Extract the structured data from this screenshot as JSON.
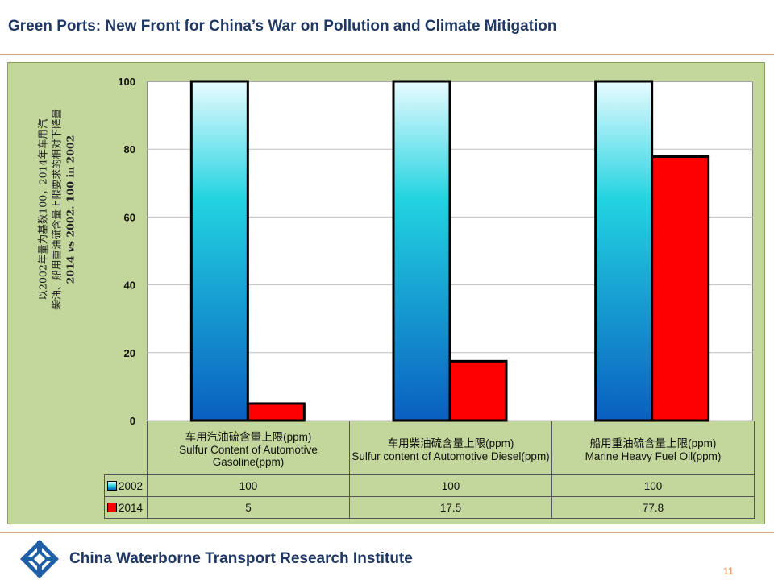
{
  "slide": {
    "title": "Green Ports: New Front for China’s War on Pollution and Climate Mitigation",
    "footer": "China Waterborne Transport Research Institute",
    "page_number": "11"
  },
  "colors": {
    "series_2002_top": "#e8fbff",
    "series_2002_mid": "#22d3e0",
    "series_2002_bottom": "#0a5fc0",
    "series_2014": "#ff0000",
    "panel": "#c3d69b",
    "title": "#1f3864"
  },
  "icons": {
    "logo": "cwtri-logo-icon"
  },
  "chart_data": {
    "type": "bar",
    "ylabel_zh_line1": "以2002年量为基数100，2014年车用汽",
    "ylabel_zh_line2": "柴油、船用重油硫含量上限要求的相对下降量",
    "ylabel_en": "2014 vs 2002. 100 in 2002",
    "ylim": [
      0,
      100
    ],
    "yticks": [
      "0",
      "20",
      "40",
      "60",
      "80",
      "100"
    ],
    "grid": true,
    "categories": [
      {
        "zh": "车用汽油硫含量上限(ppm)",
        "en": "Sulfur Content of Automotive Gasoline(ppm)"
      },
      {
        "zh": "车用柴油硫含量上限(ppm)",
        "en": "Sulfur content of Automotive Diesel(ppm)"
      },
      {
        "zh": "船用重油硫含量上限(ppm)",
        "en": "Marine Heavy Fuel Oil(ppm)"
      }
    ],
    "series": [
      {
        "name": "2002",
        "values": [
          100,
          100,
          100
        ],
        "labels": [
          "100",
          "100",
          "100"
        ]
      },
      {
        "name": "2014",
        "values": [
          5,
          17.5,
          77.8
        ],
        "labels": [
          "5",
          "17.5",
          "77.8"
        ]
      }
    ]
  }
}
